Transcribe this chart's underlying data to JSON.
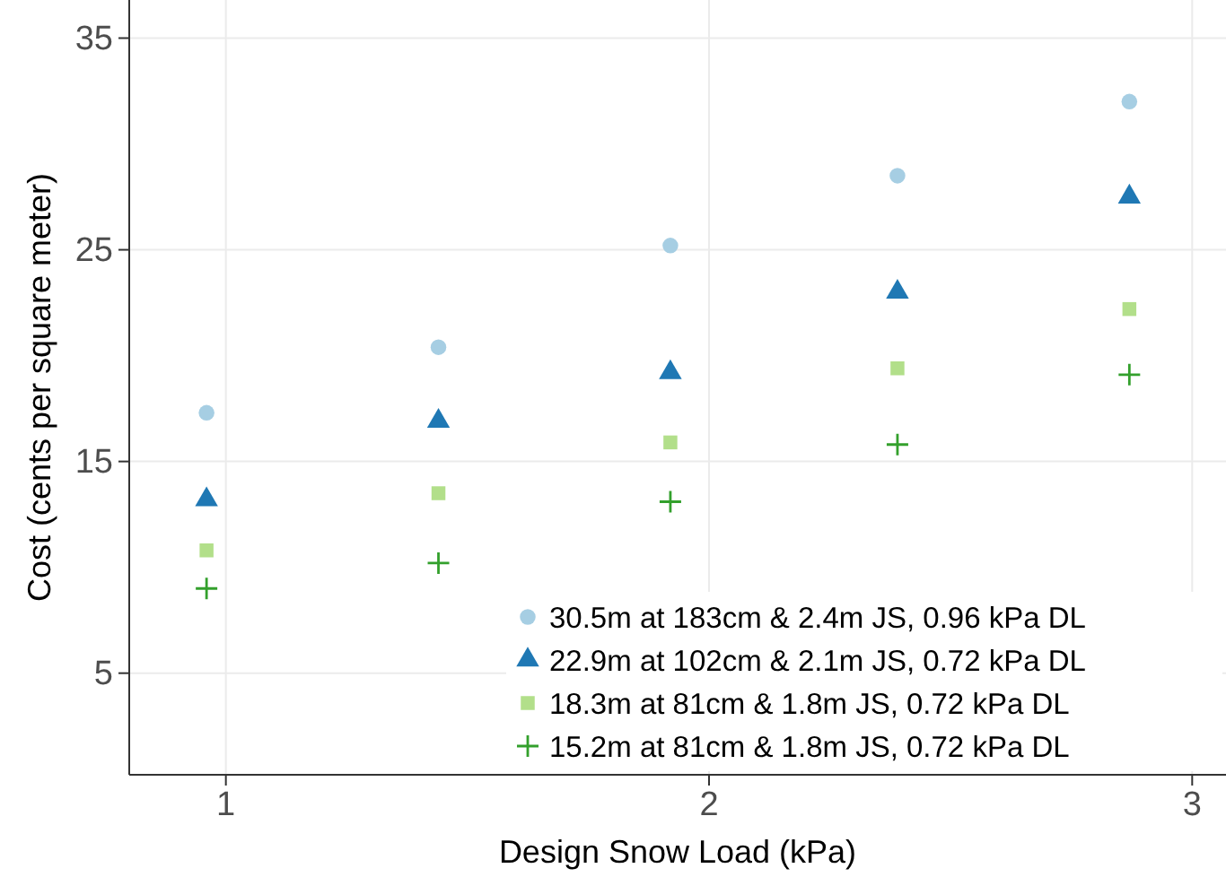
{
  "chart_data": {
    "type": "scatter",
    "xlabel": "Design Snow Load (kPa)",
    "ylabel": "Cost (cents per square meter)",
    "x": [
      0.96,
      1.44,
      1.92,
      2.39,
      2.87
    ],
    "xlim": [
      0.8,
      3.07
    ],
    "xticks": [
      1,
      2,
      3
    ],
    "ylim": [
      0.2,
      36.8
    ],
    "yticks": [
      5,
      15,
      25,
      35
    ],
    "grid": true,
    "legend": "bottom right",
    "series": [
      {
        "name": "30.5m at 183cm & 2.4m JS, 0.96 kPa DL",
        "color": "#a6cee3",
        "marker": "circle",
        "values": [
          17.3,
          20.4,
          25.2,
          28.5,
          32.0
        ]
      },
      {
        "name": "22.9m at 102cm & 2.1m JS, 0.72 kPa DL",
        "color": "#1f78b4",
        "marker": "triangle",
        "values": [
          13.2,
          16.9,
          19.2,
          23.0,
          27.5
        ]
      },
      {
        "name": "18.3m at 81cm & 1.8m JS, 0.72 kPa DL",
        "color": "#b2df8a",
        "marker": "square",
        "values": [
          10.8,
          13.5,
          15.9,
          19.4,
          22.2
        ]
      },
      {
        "name": "15.2m at 81cm & 1.8m JS, 0.72 kPa DL",
        "color": "#33a02c",
        "marker": "cross",
        "values": [
          9.0,
          10.2,
          13.1,
          15.8,
          19.1
        ]
      }
    ]
  }
}
